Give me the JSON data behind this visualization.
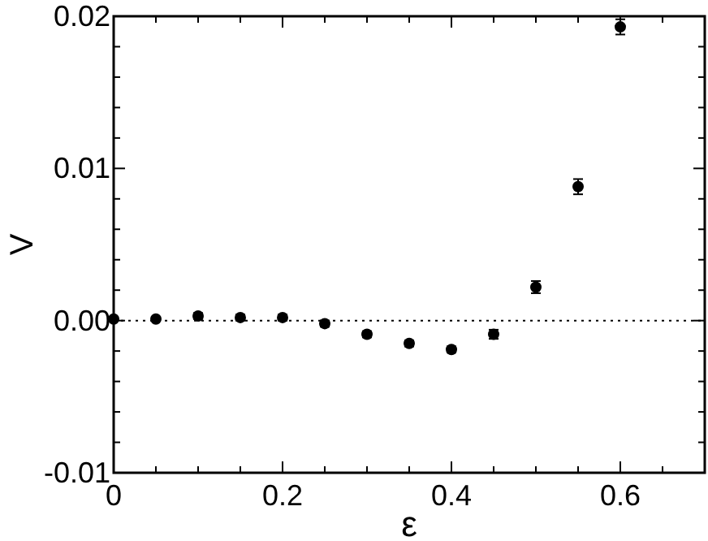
{
  "chart_data": {
    "type": "scatter",
    "xlabel": "ε",
    "ylabel": "V",
    "marker": "circle",
    "x": [
      0,
      0.05,
      0.1,
      0.15,
      0.2,
      0.25,
      0.3,
      0.35,
      0.4,
      0.45,
      0.5,
      0.55,
      0.6
    ],
    "series": [
      {
        "color": "#000000",
        "values": [
          0.0001,
          0.0001,
          0.0003,
          0.0002,
          0.0002,
          -0.0002,
          -0.0009,
          -0.0015,
          -0.0019,
          -0.0009,
          0.0022,
          0.0088,
          0.0193
        ],
        "errors": [
          0.0001,
          0.0001,
          0.0002,
          0.0002,
          0.0002,
          0.0002,
          0.0002,
          0.0002,
          0.0002,
          0.0003,
          0.0004,
          0.0005,
          0.0005
        ]
      }
    ],
    "xlim": [
      0,
      0.7
    ],
    "ylim": [
      -0.01,
      0.02
    ],
    "xticks": [
      0,
      {
        "value": 0.05,
        "label": null
      },
      {
        "value": 0.1,
        "label": null
      },
      {
        "value": 0.15,
        "label": null
      },
      0.2,
      {
        "value": 0.25,
        "label": null
      },
      {
        "value": 0.3,
        "label": null
      },
      {
        "value": 0.35,
        "label": null
      },
      0.4,
      {
        "value": 0.45,
        "label": null
      },
      {
        "value": 0.5,
        "label": null
      },
      {
        "value": 0.55,
        "label": null
      },
      0.6,
      {
        "value": 0.65,
        "label": null
      }
    ],
    "yticks": [
      {
        "value": -0.01,
        "label": "-0.01"
      },
      {
        "value": -0.008,
        "label": null
      },
      {
        "value": -0.006,
        "label": null
      },
      {
        "value": -0.004,
        "label": null
      },
      {
        "value": -0.002,
        "label": null
      },
      {
        "value": 0,
        "label": "0.00"
      },
      {
        "value": 0.002,
        "label": null
      },
      {
        "value": 0.004,
        "label": null
      },
      {
        "value": 0.006,
        "label": null
      },
      {
        "value": 0.008,
        "label": null
      },
      {
        "value": 0.01,
        "label": "0.01"
      },
      {
        "value": 0.012,
        "label": null
      },
      {
        "value": 0.014,
        "label": null
      },
      {
        "value": 0.016,
        "label": null
      },
      {
        "value": 0.018,
        "label": null
      },
      {
        "value": 0.02,
        "label": "0.02"
      }
    ],
    "ref_lines": [
      {
        "axis": "y",
        "value": 0,
        "line_style": "dotted",
        "color": "#000000"
      }
    ]
  }
}
